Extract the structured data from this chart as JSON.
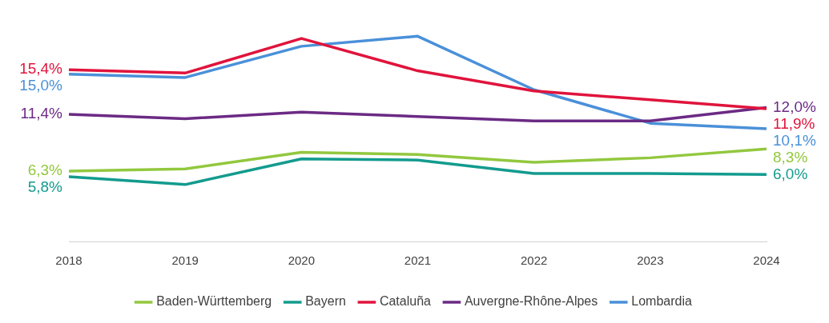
{
  "chart_data": {
    "type": "line",
    "categories": [
      "2018",
      "2019",
      "2020",
      "2021",
      "2022",
      "2023",
      "2024"
    ],
    "grid": false,
    "legend": "bottom",
    "marker": "none",
    "line_style": "solid",
    "series": [
      {
        "name": "Baden-Württemberg",
        "color": "#92c83e",
        "values": [
          6.3,
          6.5,
          8.0,
          7.8,
          7.1,
          7.5,
          8.3
        ],
        "value_labels": [
          "6,3%",
          null,
          null,
          null,
          null,
          null,
          "8,3%"
        ]
      },
      {
        "name": "Bayern",
        "color": "#139b8e",
        "values": [
          5.8,
          5.1,
          7.4,
          7.3,
          6.1,
          6.1,
          6.0
        ],
        "value_labels": [
          "5,8%",
          null,
          null,
          null,
          null,
          null,
          "6,0%"
        ]
      },
      {
        "name": "Cataluña",
        "color": "#e0143c",
        "values": [
          15.4,
          15.1,
          18.2,
          15.3,
          13.5,
          12.7,
          11.9
        ],
        "value_labels": [
          "15,4%",
          null,
          null,
          null,
          null,
          null,
          "11,9%"
        ]
      },
      {
        "name": "Auvergne-Rhône-Alpes",
        "color": "#6b2a84",
        "values": [
          11.4,
          11.0,
          11.6,
          11.2,
          10.8,
          10.8,
          12.0
        ],
        "value_labels": [
          "11,4%",
          null,
          null,
          null,
          null,
          null,
          "12,0%"
        ]
      },
      {
        "name": "Lombardia",
        "color": "#4a90d9",
        "values": [
          15.0,
          14.7,
          17.5,
          18.4,
          13.6,
          10.6,
          10.1
        ],
        "value_labels": [
          "15,0%",
          null,
          null,
          null,
          null,
          null,
          "10,1%"
        ]
      }
    ]
  }
}
